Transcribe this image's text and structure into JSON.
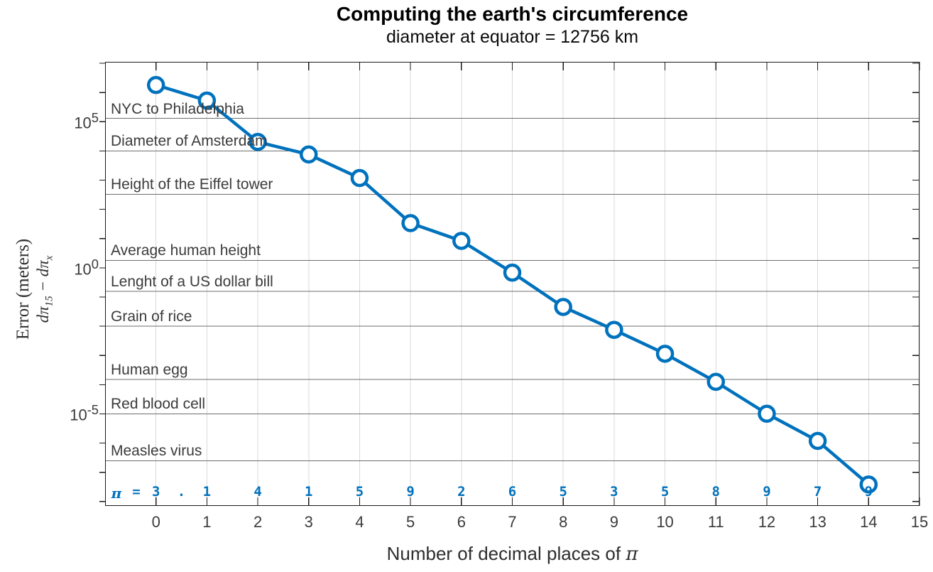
{
  "title": "Computing the earth's circumference",
  "subtitle": "diameter at equator = 12756 km",
  "chart_data": {
    "type": "line",
    "title": "Computing the earth's circumference",
    "subtitle": "diameter at equator = 12756 km",
    "xlabel_text": "Number of decimal places of ",
    "xlabel_symbol": "π",
    "ylabel_line1": "Error (meters)",
    "ylabel_math": {
      "d1": "d",
      "pi1": "π",
      "sub1": "15",
      "minus": " − ",
      "d2": "d",
      "pi2": "π",
      "sub2": "x"
    },
    "x": [
      0,
      1,
      2,
      3,
      4,
      5,
      6,
      7,
      8,
      9,
      10,
      11,
      12,
      13,
      14
    ],
    "y_error_meters": [
      1806156,
      530556,
      20316,
      7560.1,
      1181.9,
      33.853,
      8.337,
      0.68359,
      0.045791,
      0.0075236,
      0.0011454,
      0.00012492,
      1.0116e-05,
      1.1863e-06,
      3.8268e-08
    ],
    "xlim": [
      -1,
      15
    ],
    "ylog_top": 7.05,
    "ylog_bottom": -8.15,
    "xticks": [
      0,
      1,
      2,
      3,
      4,
      5,
      6,
      7,
      8,
      9,
      10,
      11,
      12,
      13,
      14,
      15
    ],
    "ytick_exponents": [
      5,
      0,
      -5
    ],
    "grid": "vertical-only",
    "legend": "none",
    "reference_lines": [
      {
        "label": "NYC to Philadelphia",
        "value_m": 130000
      },
      {
        "label": "Diameter of Amsterdam",
        "value_m": 10000
      },
      {
        "label": "Height of the Eiffel tower",
        "value_m": 330
      },
      {
        "label": "Average human height",
        "value_m": 1.8
      },
      {
        "label": "Lenght of a US dollar bill",
        "value_m": 0.156
      },
      {
        "label": "Grain of rice",
        "value_m": 0.01
      },
      {
        "label": "Human egg",
        "value_m": 0.00015
      },
      {
        "label": "Red blood cell",
        "value_m": 1e-05
      },
      {
        "label": "Measles virus",
        "value_m": 2.5e-07
      }
    ],
    "pi_annotation": {
      "symbol": "π",
      "equals": "=",
      "decimal_point": ".",
      "digits": [
        "3",
        "1",
        "4",
        "1",
        "5",
        "9",
        "2",
        "6",
        "5",
        "3",
        "5",
        "8",
        "9",
        "7",
        "9"
      ]
    },
    "colors": {
      "line": "#0072BD",
      "marker_fill": "#ffffff",
      "grid": "#d9d9d9",
      "ref_line": "#6e6e6e",
      "frame": "#1a1a1a",
      "tick_text": "#3b3b3b",
      "pi_digits": "#0072BD"
    }
  }
}
